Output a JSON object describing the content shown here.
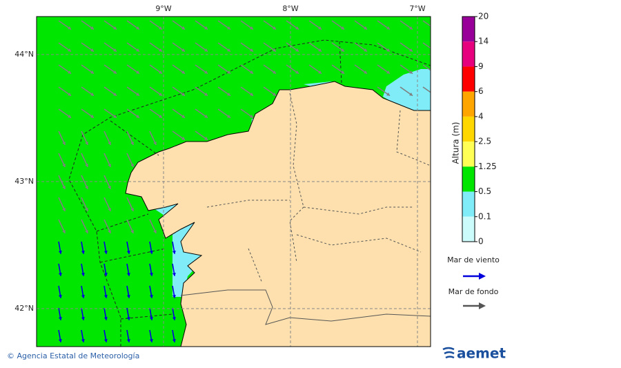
{
  "map": {
    "lon_labels": [
      "9°W",
      "8°W",
      "7°W"
    ],
    "lat_labels": [
      "44°N",
      "43°N",
      "42°N"
    ]
  },
  "colorbar": {
    "title": "Altura (m)",
    "labels": [
      "20",
      "14",
      "9",
      "6",
      "4",
      "2.5",
      "1.25",
      "0.5",
      "0.1",
      "0"
    ],
    "colors": [
      "#990099",
      "#e6007e",
      "#ff0000",
      "#ffa500",
      "#ffd700",
      "#ffff55",
      "#00e600",
      "#7fecf7",
      "#ccfbfb"
    ]
  },
  "legend": {
    "wind_sea": "Mar de viento",
    "wind_sea_color": "#0000dd",
    "swell": "Mar de fondo",
    "swell_color": "#555555"
  },
  "footer": {
    "credit": "© Agencia Estatal de Meteorología",
    "logo": "aemet"
  }
}
